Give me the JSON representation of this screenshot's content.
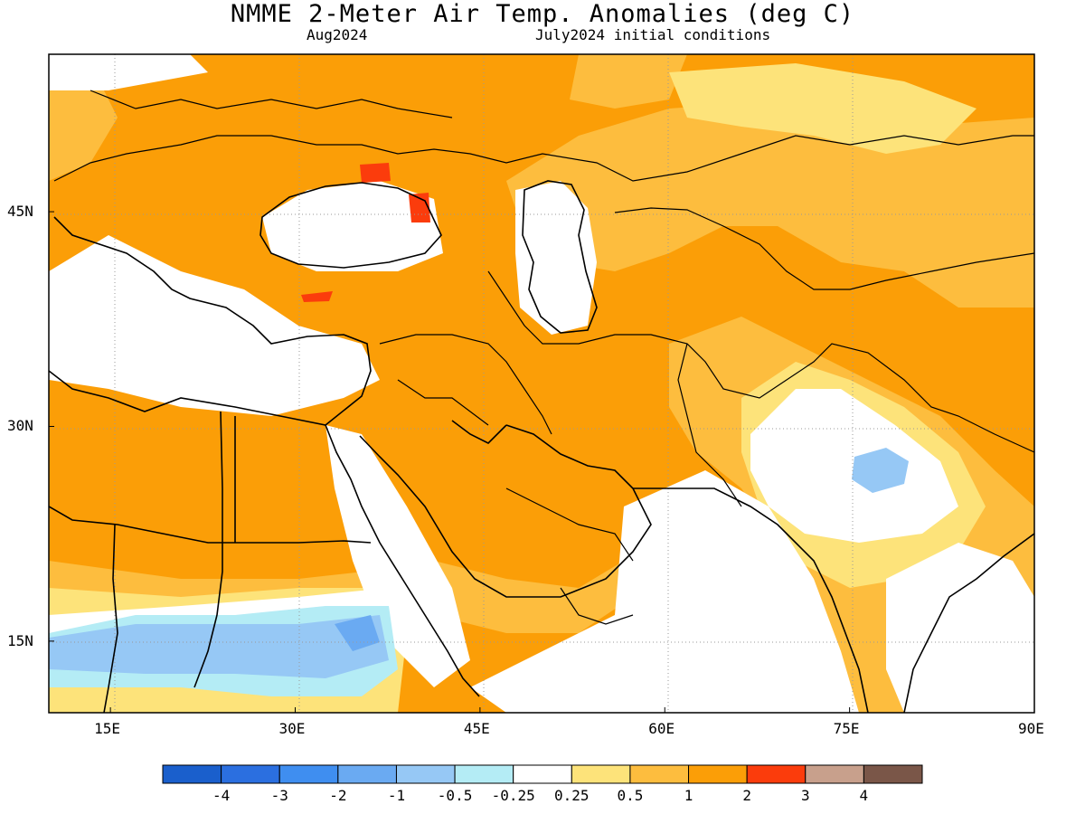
{
  "title": "NMME 2-Meter Air Temp. Anomalies (deg C)",
  "subtitle_left": "Aug2024",
  "subtitle_right": "July2024 initial conditions",
  "map": {
    "extent": {
      "lon_min": 10,
      "lon_max": 90,
      "lat_min": 10,
      "lat_max": 56
    },
    "x_ticks": [
      {
        "lon": 15,
        "label": "15E"
      },
      {
        "lon": 30,
        "label": "30E"
      },
      {
        "lon": 45,
        "label": "45E"
      },
      {
        "lon": 60,
        "label": "60E"
      },
      {
        "lon": 75,
        "label": "75E"
      },
      {
        "lon": 90,
        "label": "90E"
      }
    ],
    "y_ticks": [
      {
        "lat": 45,
        "label": "45N"
      },
      {
        "lat": 30,
        "label": "30N"
      },
      {
        "lat": 15,
        "label": "15N"
      }
    ],
    "gridlines": "dotted",
    "background_color": "#ffffff"
  },
  "colorbar": {
    "colors": [
      "#1a5fcc",
      "#2b6fe0",
      "#3f8ef0",
      "#6aaaf2",
      "#96c8f5",
      "#b4ecf5",
      "#ffffff",
      "#fde37a",
      "#fdbd3e",
      "#fb9e07",
      "#fb3c0c",
      "#c8a08c",
      "#7a5648"
    ],
    "labels": [
      "-4",
      "-3",
      "-2",
      "-1",
      "-0.5",
      "-0.25",
      "0.25",
      "0.5",
      "1",
      "2",
      "3",
      "4"
    ]
  },
  "anomaly_palette": {
    "very_warm": "#fb3c0c",
    "warm": "#fb9e07",
    "mild_warm": "#fdbd3e",
    "slight_warm": "#fde37a",
    "neutral": "#ffffff",
    "slight_cool": "#b4ecf5",
    "mild_cool": "#96c8f5",
    "cool": "#6aaaf2"
  }
}
